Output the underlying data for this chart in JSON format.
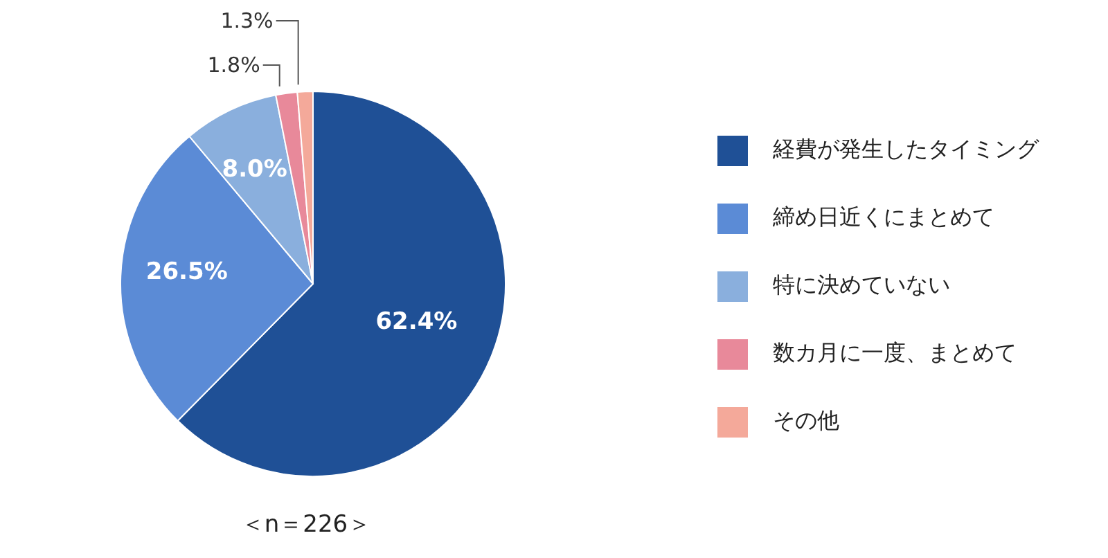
{
  "chart_data": {
    "type": "pie",
    "categories": [
      "経費が発生したタイミング",
      "締め日近くにまとめて",
      "特に決めていない",
      "数カ月に一度、まとめて",
      "その他"
    ],
    "values": [
      62.4,
      26.5,
      8.0,
      1.8,
      1.3
    ],
    "colors": [
      "#1f5096",
      "#5b8bd6",
      "#8aafdd",
      "#e8899a",
      "#f4a99a"
    ],
    "value_labels": [
      "62.4%",
      "26.5%",
      "8.0%",
      "1.8%",
      "1.3%"
    ],
    "legend": "right",
    "annotations": [
      "＜n＝226＞"
    ]
  }
}
